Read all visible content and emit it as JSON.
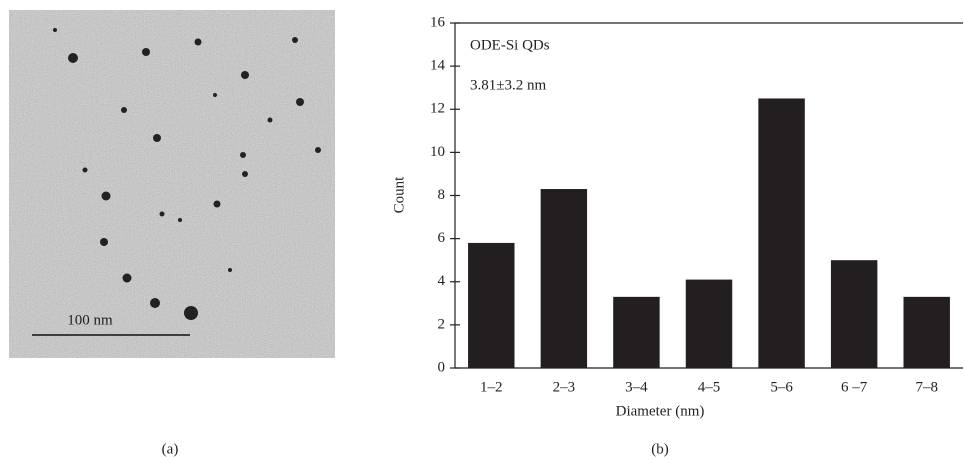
{
  "chart_data": {
    "type": "bar",
    "categories": [
      "1–2",
      "2–3",
      "3–4",
      "4–5",
      "5–6",
      "6 –7",
      "7–8"
    ],
    "values": [
      5.8,
      8.3,
      3.3,
      4.1,
      12.5,
      5.0,
      3.3
    ],
    "color": "#231f20",
    "xlabel": "Diameter (nm)",
    "ylabel": "Count",
    "ylim": [
      0,
      16
    ],
    "yticks": [
      0,
      2,
      4,
      6,
      8,
      10,
      12,
      14,
      16
    ],
    "annotations": [
      "ODE-Si QDs",
      "3.81±3.2 nm"
    ]
  },
  "image": {
    "scale_bar_label": "100 nm"
  },
  "panels": {
    "a": "(a)",
    "b": "(b)"
  }
}
